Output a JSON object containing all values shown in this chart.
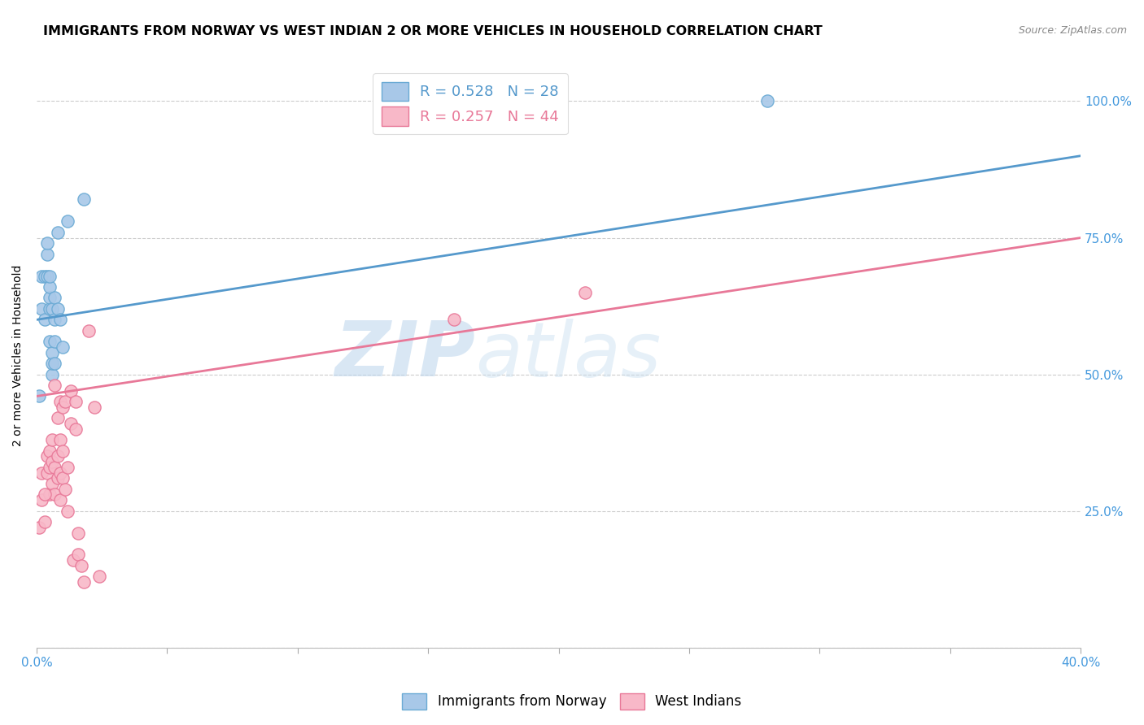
{
  "title": "IMMIGRANTS FROM NORWAY VS WEST INDIAN 2 OR MORE VEHICLES IN HOUSEHOLD CORRELATION CHART",
  "source": "Source: ZipAtlas.com",
  "ylabel": "2 or more Vehicles in Household",
  "ytick_labels": [
    "",
    "25.0%",
    "50.0%",
    "75.0%",
    "100.0%"
  ],
  "ytick_positions": [
    0.0,
    0.25,
    0.5,
    0.75,
    1.0
  ],
  "xlim": [
    0.0,
    0.4
  ],
  "ylim": [
    0.0,
    1.07
  ],
  "norway_color": "#a8c8e8",
  "norway_edge": "#6aaad4",
  "westindian_color": "#f8b8c8",
  "westindian_edge": "#e87898",
  "norway_R": 0.528,
  "norway_N": 28,
  "westindian_R": 0.257,
  "westindian_N": 44,
  "norway_line_color": "#5599cc",
  "westindian_line_color": "#e87898",
  "legend_norway_label": "Immigrants from Norway",
  "legend_westindian_label": "West Indians",
  "watermark_zip": "ZIP",
  "watermark_atlas": "atlas",
  "norway_x": [
    0.001,
    0.002,
    0.002,
    0.003,
    0.003,
    0.004,
    0.004,
    0.004,
    0.005,
    0.005,
    0.005,
    0.005,
    0.005,
    0.006,
    0.006,
    0.006,
    0.006,
    0.007,
    0.007,
    0.007,
    0.007,
    0.008,
    0.008,
    0.009,
    0.01,
    0.012,
    0.018,
    0.28
  ],
  "norway_y": [
    0.46,
    0.68,
    0.62,
    0.6,
    0.68,
    0.68,
    0.72,
    0.74,
    0.56,
    0.62,
    0.64,
    0.66,
    0.68,
    0.5,
    0.52,
    0.54,
    0.62,
    0.52,
    0.56,
    0.6,
    0.64,
    0.62,
    0.76,
    0.6,
    0.55,
    0.78,
    0.82,
    1.0
  ],
  "westindian_x": [
    0.001,
    0.002,
    0.002,
    0.003,
    0.004,
    0.004,
    0.005,
    0.005,
    0.005,
    0.006,
    0.006,
    0.006,
    0.007,
    0.007,
    0.007,
    0.008,
    0.008,
    0.008,
    0.009,
    0.009,
    0.009,
    0.009,
    0.01,
    0.01,
    0.01,
    0.011,
    0.011,
    0.012,
    0.012,
    0.013,
    0.013,
    0.014,
    0.015,
    0.015,
    0.016,
    0.016,
    0.017,
    0.018,
    0.02,
    0.022,
    0.024,
    0.16,
    0.21,
    0.003
  ],
  "westindian_y": [
    0.22,
    0.27,
    0.32,
    0.23,
    0.32,
    0.35,
    0.28,
    0.33,
    0.36,
    0.3,
    0.34,
    0.38,
    0.28,
    0.33,
    0.48,
    0.31,
    0.35,
    0.42,
    0.27,
    0.32,
    0.38,
    0.45,
    0.31,
    0.36,
    0.44,
    0.29,
    0.45,
    0.25,
    0.33,
    0.41,
    0.47,
    0.16,
    0.4,
    0.45,
    0.17,
    0.21,
    0.15,
    0.12,
    0.58,
    0.44,
    0.13,
    0.6,
    0.65,
    0.28
  ],
  "background_color": "#ffffff",
  "grid_color": "#cccccc",
  "title_fontsize": 11.5,
  "axis_label_fontsize": 10,
  "tick_fontsize": 11,
  "right_tick_color": "#4499dd",
  "bottom_label_color": "#4499dd",
  "norway_line_x0": 0.0,
  "norway_line_y0": 0.6,
  "norway_line_x1": 0.4,
  "norway_line_y1": 0.9,
  "west_line_x0": 0.0,
  "west_line_y0": 0.46,
  "west_line_x1": 0.4,
  "west_line_y1": 0.75
}
